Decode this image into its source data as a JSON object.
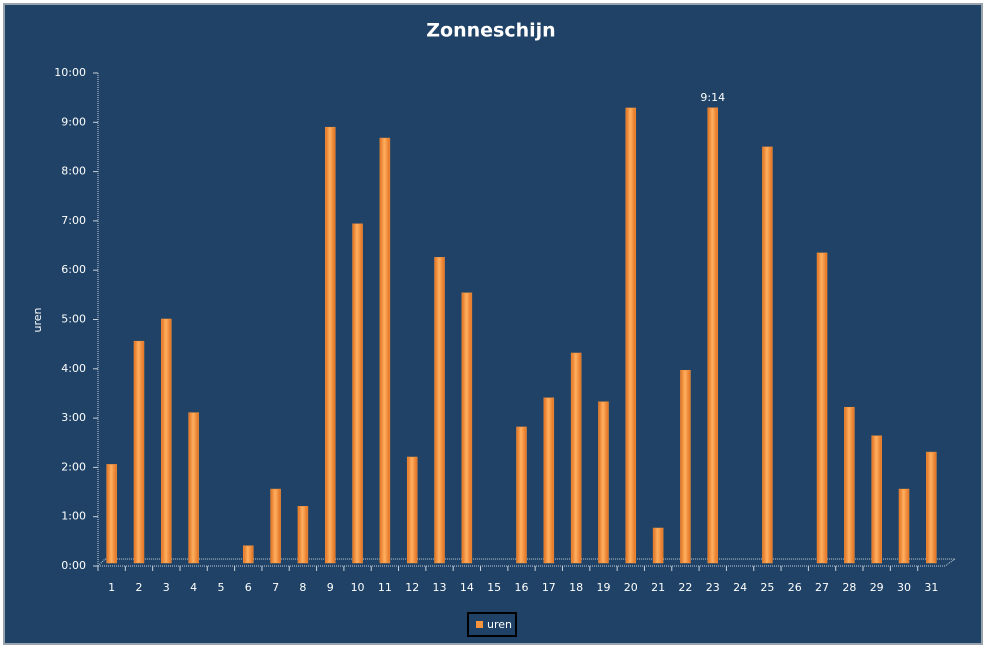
{
  "chart_data": {
    "type": "bar",
    "title": "Zonneschijn",
    "y_label": "uren",
    "categories": [
      "1",
      "2",
      "3",
      "4",
      "5",
      "6",
      "7",
      "8",
      "9",
      "10",
      "11",
      "12",
      "13",
      "14",
      "15",
      "16",
      "17",
      "18",
      "19",
      "20",
      "21",
      "22",
      "23",
      "24",
      "25",
      "26",
      "27",
      "28",
      "29",
      "30",
      "31"
    ],
    "series": [
      {
        "name": "uren",
        "color": "#f7953d",
        "values": [
          2.0,
          4.5,
          4.95,
          3.05,
          0,
          0.35,
          1.5,
          1.15,
          8.84,
          6.88,
          8.62,
          2.15,
          6.2,
          5.48,
          0,
          2.76,
          3.35,
          4.26,
          3.27,
          9.23,
          0.71,
          3.91,
          9.2333,
          0,
          8.44,
          0,
          6.29,
          3.16,
          2.58,
          1.5,
          2.25
        ],
        "value_labels": [
          null,
          null,
          null,
          null,
          null,
          null,
          null,
          null,
          null,
          null,
          null,
          null,
          null,
          null,
          null,
          null,
          null,
          null,
          null,
          null,
          null,
          null,
          "9:14",
          null,
          null,
          null,
          null,
          null,
          null,
          null,
          null
        ]
      }
    ],
    "ylim": [
      0,
      10
    ],
    "yticks": [
      {
        "value": 0,
        "label": "0:00"
      },
      {
        "value": 1,
        "label": "1:00"
      },
      {
        "value": 2,
        "label": "2:00"
      },
      {
        "value": 3,
        "label": "3:00"
      },
      {
        "value": 4,
        "label": "4:00"
      },
      {
        "value": 5,
        "label": "5:00"
      },
      {
        "value": 6,
        "label": "6:00"
      },
      {
        "value": 7,
        "label": "7:00"
      },
      {
        "value": 8,
        "label": "8:00"
      },
      {
        "value": 9,
        "label": "9:00"
      },
      {
        "value": 10,
        "label": "10:00"
      }
    ],
    "legend": "bottom"
  }
}
